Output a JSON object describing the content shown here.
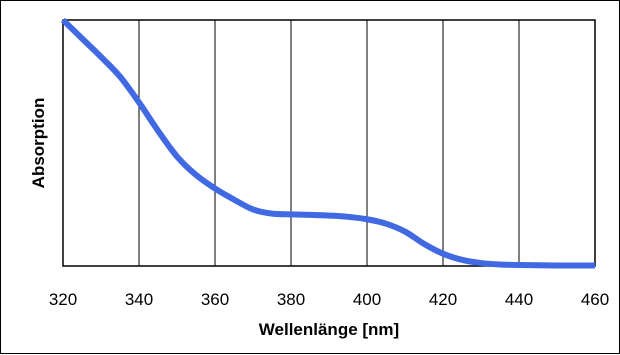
{
  "chart_data": {
    "type": "line",
    "title": "",
    "xlabel": "Wellenlänge [nm]",
    "ylabel": "Absorption",
    "xlim": [
      320,
      460
    ],
    "ylim": [
      0,
      1
    ],
    "x_ticks": [
      320,
      340,
      360,
      380,
      400,
      420,
      440,
      460
    ],
    "x_tick_labels": [
      "320",
      "340",
      "360",
      "380",
      "400",
      "420",
      "440",
      "460"
    ],
    "y_tick_labels": [],
    "grid": "vertical",
    "legend": "none",
    "series": [
      {
        "color": "#4169e1",
        "x": [
          320,
          322,
          325,
          330,
          335,
          340,
          345,
          350,
          355,
          360,
          365,
          370,
          375,
          380,
          385,
          390,
          395,
          400,
          405,
          410,
          415,
          420,
          425,
          430,
          435,
          440,
          445,
          450,
          455,
          460
        ],
        "y": [
          1.0,
          0.97,
          0.925,
          0.85,
          0.77,
          0.665,
          0.55,
          0.445,
          0.37,
          0.315,
          0.27,
          0.23,
          0.213,
          0.21,
          0.208,
          0.205,
          0.2,
          0.19,
          0.172,
          0.14,
          0.09,
          0.05,
          0.025,
          0.012,
          0.006,
          0.004,
          0.003,
          0.002,
          0.002,
          0.002
        ]
      }
    ]
  }
}
